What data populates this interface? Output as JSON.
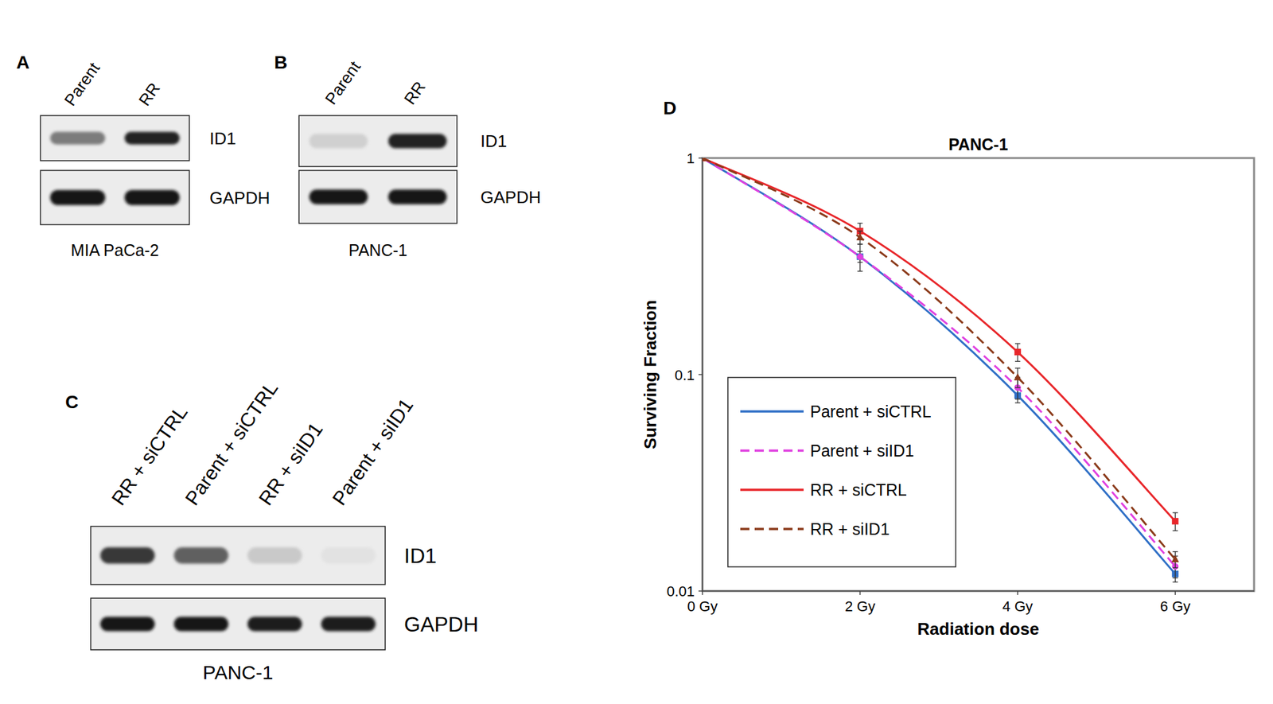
{
  "blots": [
    {
      "label": "A",
      "lanes": [
        "Parent",
        "RR"
      ],
      "caption": "MIA PaCa-2",
      "rows": [
        {
          "protein": "ID1",
          "intensities": [
            0.5,
            0.9
          ]
        },
        {
          "protein": "GAPDH",
          "intensities": [
            0.95,
            0.95
          ]
        }
      ]
    },
    {
      "label": "B",
      "lanes": [
        "Parent",
        "RR"
      ],
      "caption": "PANC-1",
      "rows": [
        {
          "protein": "ID1",
          "intensities": [
            0.12,
            0.9
          ]
        },
        {
          "protein": "GAPDH",
          "intensities": [
            0.95,
            0.95
          ]
        }
      ]
    },
    {
      "label": "C",
      "lanes": [
        "RR + siCTRL",
        "Parent + siCTRL",
        "RR + siID1",
        "Parent + siID1"
      ],
      "caption": "PANC-1",
      "rows": [
        {
          "protein": "ID1",
          "intensities": [
            0.8,
            0.62,
            0.15,
            0.04
          ]
        },
        {
          "protein": "GAPDH",
          "intensities": [
            0.95,
            0.95,
            0.93,
            0.92
          ]
        }
      ]
    }
  ],
  "chart_data": {
    "type": "line",
    "panel_label": "D",
    "title": "PANC-1",
    "x_label": "Radiation dose",
    "y_label": "Surviving Fraction",
    "x": [
      0,
      2,
      4,
      6
    ],
    "xlim": [
      0,
      7
    ],
    "xticks": [
      {
        "value": 0,
        "label": "0 Gy"
      },
      {
        "value": 2,
        "label": "2 Gy"
      },
      {
        "value": 4,
        "label": "4 Gy"
      },
      {
        "value": 6,
        "label": "6 Gy"
      }
    ],
    "ylim": [
      0.01,
      1
    ],
    "yticks": [
      0.01,
      0.1,
      1
    ],
    "log": "y",
    "grid": false,
    "legend": "lower left",
    "series": [
      {
        "name": "Parent + siCTRL",
        "color": "#2f6fc6",
        "line_style": "solid",
        "marker": "square",
        "values": [
          1,
          0.35,
          0.08,
          0.012
        ],
        "errors": [
          0,
          0.02,
          0.006,
          0.001
        ]
      },
      {
        "name": "Parent + siID1",
        "color": "#e040e0",
        "line_style": "dashed",
        "marker": "circle",
        "values": [
          1,
          0.35,
          0.087,
          0.013
        ],
        "errors": [
          0,
          0.05,
          0.01,
          0.0015
        ]
      },
      {
        "name": "RR + siCTRL",
        "color": "#e8262a",
        "line_style": "solid",
        "marker": "square",
        "values": [
          1,
          0.46,
          0.127,
          0.021
        ],
        "errors": [
          0,
          0.04,
          0.012,
          0.002
        ]
      },
      {
        "name": "RR + siID1",
        "color": "#8b3a1a",
        "line_style": "dashed",
        "marker": "triangle",
        "values": [
          1,
          0.43,
          0.097,
          0.014
        ],
        "errors": [
          0,
          0.03,
          0.01,
          0.0012
        ]
      }
    ]
  }
}
